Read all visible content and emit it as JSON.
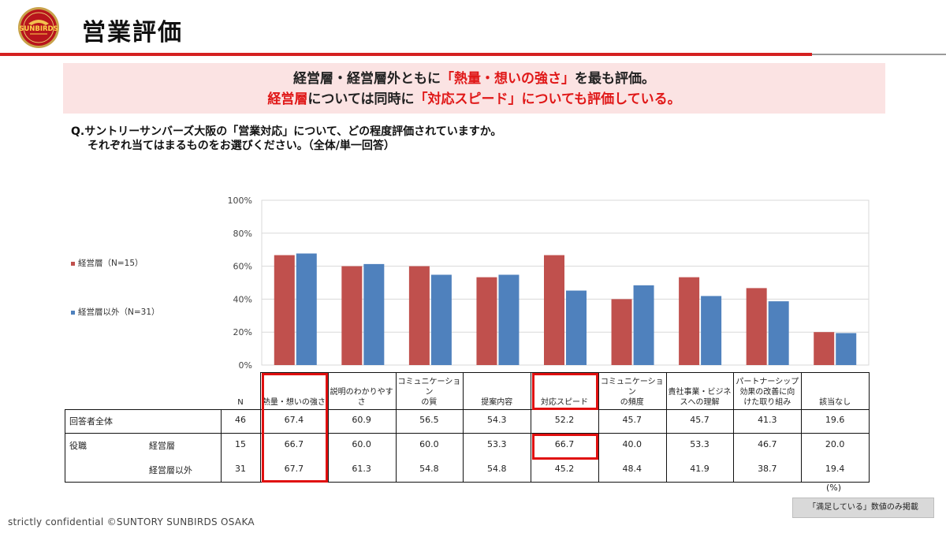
{
  "header": {
    "title": "営業評価",
    "logo_text": "SUNBIRDS"
  },
  "banner": {
    "line1_a": "経営層・経営層外ともに",
    "line1_b": "「熱量・想いの強さ」",
    "line1_c": "を最も評価。",
    "line2_a": "経営層",
    "line2_b": "については同時に",
    "line2_c": "「対応スピード」",
    "line2_d": "についても評価している。"
  },
  "question": {
    "line1": "Q.サントリーサンバーズ大阪の「営業対応」について、どの程度評価されていますか。",
    "line2": "それぞれ当てはまるものをお選びください。（全体/単一回答）"
  },
  "colors": {
    "mgmt": "#c0504d",
    "other": "#4f81bd",
    "highlight": "#e01010",
    "rule_red": "#d42020"
  },
  "chart_data": {
    "type": "bar",
    "categories": [
      "熱量・想いの強さ",
      "説明のわかりやすさ",
      "コミュニケーションの質",
      "提案内容",
      "対応スピード",
      "コミュニケーションの頻度",
      "貴社事業・ビジネスへの理解",
      "パートナーシップ効果の改善に向けた取り組み",
      "該当なし"
    ],
    "category_labels": [
      [
        "熱量・想いの強さ"
      ],
      [
        "説明のわかりやす",
        "さ"
      ],
      [
        "コミュニケーション",
        "の質"
      ],
      [
        "提案内容"
      ],
      [
        "対応スピード"
      ],
      [
        "コミュニケーション",
        "の頻度"
      ],
      [
        "貴社事業・ビジネ",
        "スへの理解"
      ],
      [
        "パートナーシップ",
        "効果の改善に向",
        "けた取り組み"
      ],
      [
        "該当なし"
      ]
    ],
    "series": [
      {
        "name": "経営層（N=15）",
        "values": [
          66.7,
          60.0,
          60.0,
          53.3,
          66.7,
          40.0,
          53.3,
          46.7,
          20.0
        ]
      },
      {
        "name": "経営層以外（N=31）",
        "values": [
          67.7,
          61.3,
          54.8,
          54.8,
          45.2,
          48.4,
          41.9,
          38.7,
          19.4
        ]
      }
    ],
    "y_ticks": [
      "0%",
      "20%",
      "40%",
      "60%",
      "80%",
      "100%"
    ],
    "ylim": [
      0,
      100
    ],
    "grid": true,
    "legend_position": "left"
  },
  "table": {
    "n_header": "N",
    "rows": [
      {
        "group": "回答者全体",
        "sub": "",
        "n": "46",
        "values": [
          "67.4",
          "60.9",
          "56.5",
          "54.3",
          "52.2",
          "45.7",
          "45.7",
          "41.3",
          "19.6"
        ]
      },
      {
        "group": "役職",
        "sub": "経営層",
        "n": "15",
        "values": [
          "66.7",
          "60.0",
          "60.0",
          "53.3",
          "66.7",
          "40.0",
          "53.3",
          "46.7",
          "20.0"
        ]
      },
      {
        "group": "",
        "sub": "経営層以外",
        "n": "31",
        "values": [
          "67.7",
          "61.3",
          "54.8",
          "54.8",
          "45.2",
          "48.4",
          "41.9",
          "38.7",
          "19.4"
        ]
      }
    ],
    "unit": "(%)"
  },
  "note": "「満足している」数値のみ掲載",
  "footer": "strictly confidential  ©SUNTORY SUNBIRDS OSAKA"
}
